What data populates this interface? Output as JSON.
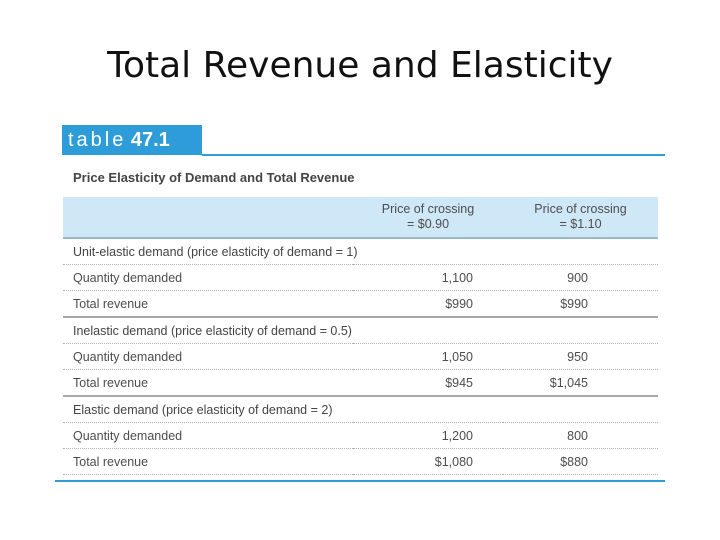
{
  "slide": {
    "title": "Total Revenue and Elasticity"
  },
  "table": {
    "badge_word": "table",
    "badge_number": "47.1",
    "caption": "Price Elasticity of Demand and Total Revenue",
    "columns": [
      {
        "line1": "Price of crossing",
        "line2": "= $0.90"
      },
      {
        "line1": "Price of crossing",
        "line2": "= $1.10"
      }
    ],
    "sections": [
      {
        "title": "Unit-elastic demand (price elasticity of demand = 1)",
        "rows": [
          {
            "label": "Quantity demanded",
            "values": [
              "1,100",
              "900"
            ]
          },
          {
            "label": "Total revenue",
            "values": [
              "$990",
              "$990"
            ]
          }
        ]
      },
      {
        "title": "Inelastic demand (price elasticity of demand = 0.5)",
        "rows": [
          {
            "label": "Quantity demanded",
            "values": [
              "1,050",
              "950"
            ]
          },
          {
            "label": "Total revenue",
            "values": [
              "$945",
              "$1,045"
            ]
          }
        ]
      },
      {
        "title": "Elastic demand (price elasticity of demand = 2)",
        "rows": [
          {
            "label": "Quantity demanded",
            "values": [
              "1,200",
              "800"
            ]
          },
          {
            "label": "Total revenue",
            "values": [
              "$1,080",
              "$880"
            ]
          }
        ]
      }
    ]
  }
}
